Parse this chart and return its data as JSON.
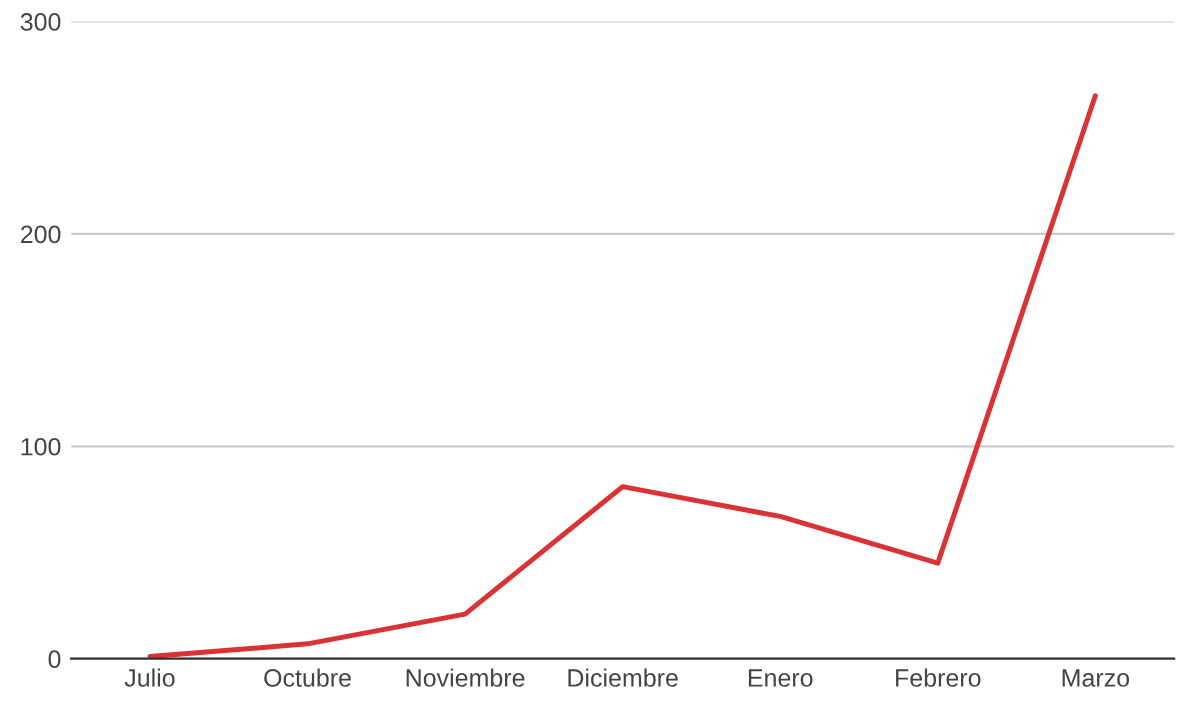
{
  "chart_data": {
    "type": "line",
    "categories": [
      "Julio",
      "Octubre",
      "Noviembre",
      "Diciembre",
      "Enero",
      "Febrero",
      "Marzo"
    ],
    "series": [
      {
        "color": "#db3236",
        "values": [
          1,
          7,
          21,
          81,
          67,
          45,
          265
        ]
      }
    ],
    "ylim": [
      0,
      300
    ],
    "yticks": [
      0,
      100,
      200,
      300
    ],
    "grid": "y",
    "legend": false,
    "marker": "none",
    "line_style": "solid"
  }
}
